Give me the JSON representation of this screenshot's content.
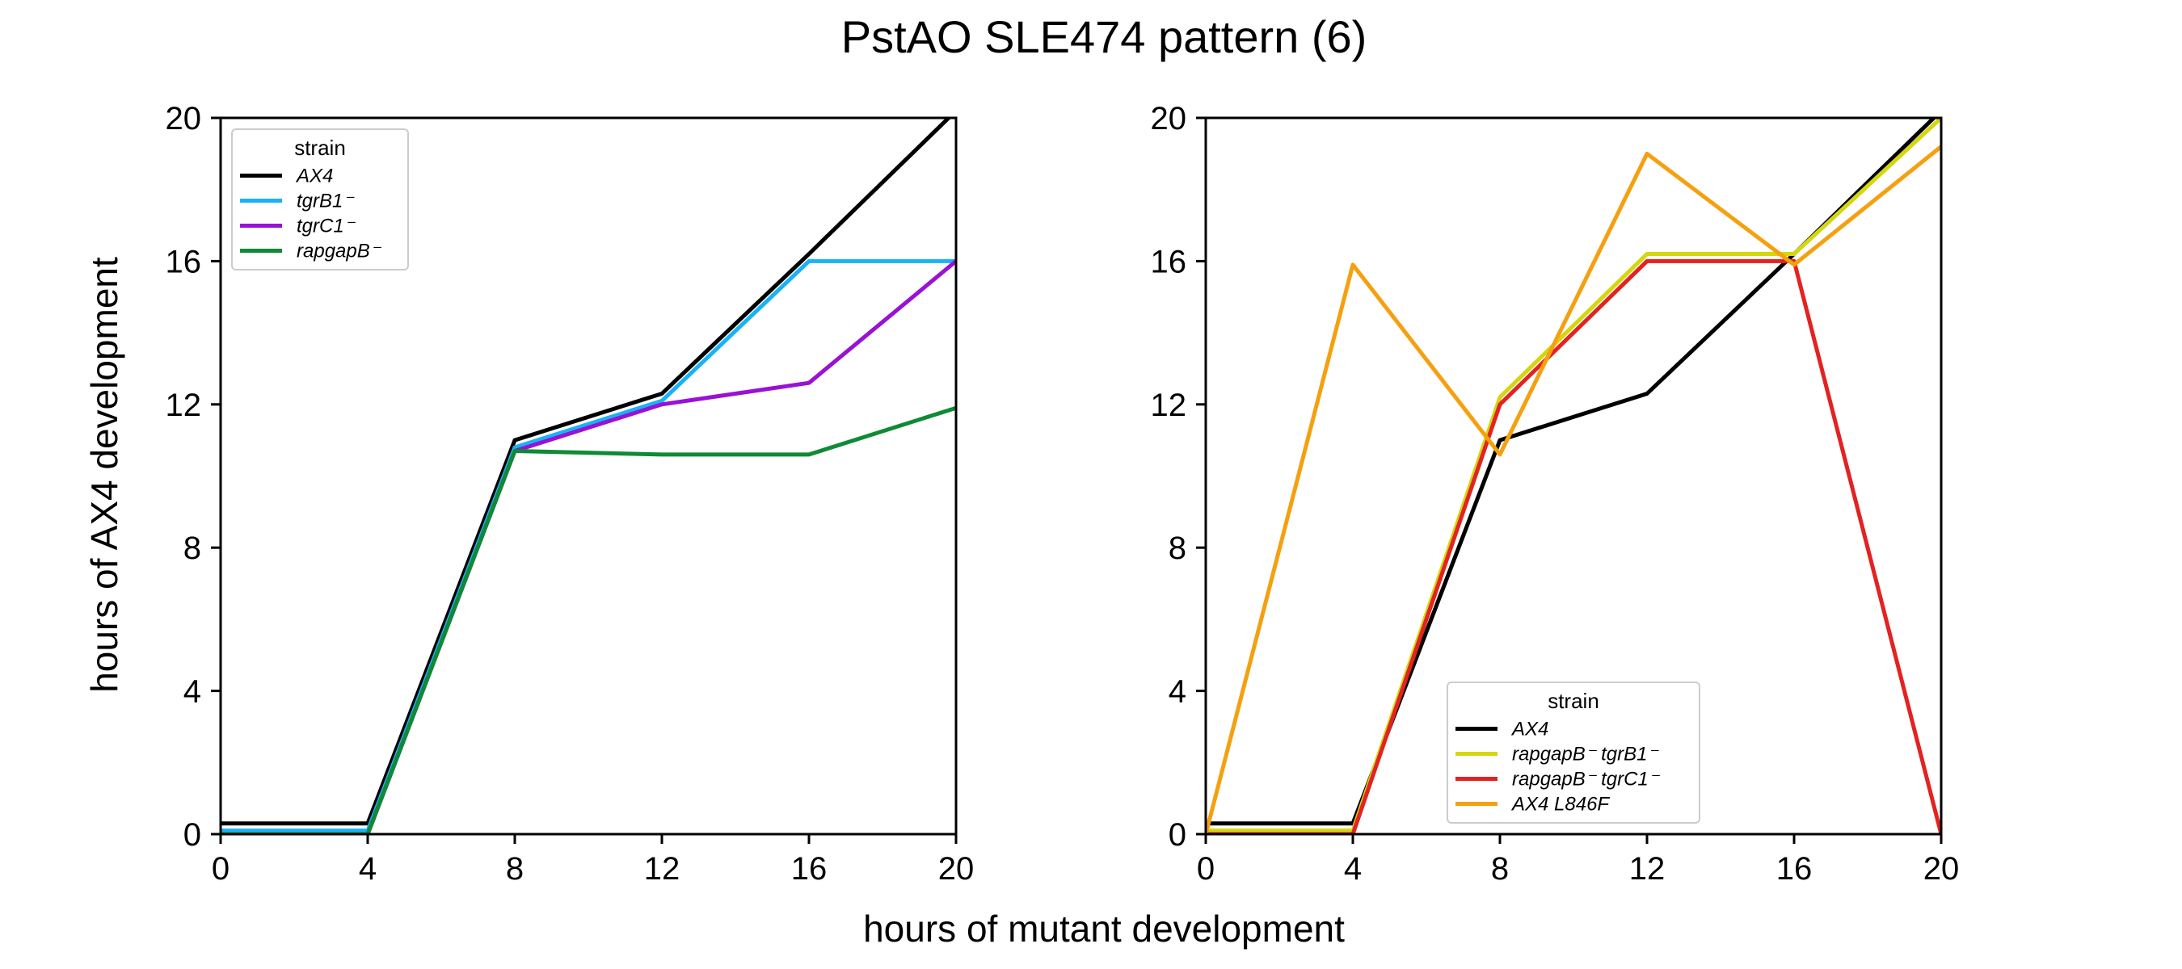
{
  "figure": {
    "title": "PstAO SLE474 pattern (6)",
    "xlabel": "hours of mutant development",
    "ylabel": "hours of AX4 development"
  },
  "chart_data": [
    {
      "type": "line",
      "xlim": [
        0,
        20
      ],
      "ylim": [
        0,
        20
      ],
      "xticks": [
        0,
        4,
        8,
        12,
        16,
        20
      ],
      "yticks": [
        0,
        4,
        8,
        12,
        16,
        20
      ],
      "xticklabels": [
        "0",
        "4",
        "8",
        "12",
        "16",
        "20"
      ],
      "yticklabels": [
        "0",
        "4",
        "8",
        "12",
        "16",
        "20"
      ],
      "grid": false,
      "legend": {
        "title": "strain",
        "position": "top-left"
      },
      "x": [
        0,
        4,
        8,
        12,
        16,
        20
      ],
      "series": [
        {
          "name": "AX4",
          "color": "#000000",
          "values": [
            0.3,
            0.3,
            11.0,
            12.3,
            16.2,
            20.2
          ]
        },
        {
          "name": "tgrB1⁻",
          "color": "#1ab2f5",
          "values": [
            0.1,
            0.1,
            10.8,
            12.1,
            16.0,
            16.0
          ]
        },
        {
          "name": "tgrC1⁻",
          "color": "#9a11d6",
          "values": [
            0.0,
            0.0,
            10.7,
            12.0,
            12.6,
            16.0
          ]
        },
        {
          "name": "rapgapB⁻",
          "color": "#0f8a35",
          "values": [
            0.0,
            0.0,
            10.7,
            10.6,
            10.6,
            11.9
          ]
        }
      ]
    },
    {
      "type": "line",
      "xlim": [
        0,
        20
      ],
      "ylim": [
        0,
        20
      ],
      "xticks": [
        0,
        4,
        8,
        12,
        16,
        20
      ],
      "yticks": [
        0,
        4,
        8,
        12,
        16,
        20
      ],
      "xticklabels": [
        "0",
        "4",
        "8",
        "12",
        "16",
        "20"
      ],
      "yticklabels": [
        "0",
        "4",
        "8",
        "12",
        "16",
        "20"
      ],
      "grid": false,
      "legend": {
        "title": "strain",
        "position": "bottom-center"
      },
      "x": [
        0,
        4,
        8,
        12,
        16,
        20
      ],
      "series": [
        {
          "name": "AX4",
          "color": "#000000",
          "values": [
            0.3,
            0.3,
            11.0,
            12.3,
            16.2,
            20.2
          ]
        },
        {
          "name": "rapgapB⁻ tgrB1⁻",
          "color": "#d6d60f",
          "values": [
            0.1,
            0.1,
            12.2,
            16.2,
            16.2,
            20.0
          ]
        },
        {
          "name": "rapgapB⁻ tgrC1⁻",
          "color": "#e32222",
          "values": [
            0.0,
            0.0,
            12.0,
            16.0,
            16.0,
            0.0
          ]
        },
        {
          "name": "AX4 L846F",
          "color": "#f5a00f",
          "values": [
            0.0,
            15.9,
            10.6,
            19.0,
            15.9,
            19.2
          ]
        }
      ]
    }
  ]
}
